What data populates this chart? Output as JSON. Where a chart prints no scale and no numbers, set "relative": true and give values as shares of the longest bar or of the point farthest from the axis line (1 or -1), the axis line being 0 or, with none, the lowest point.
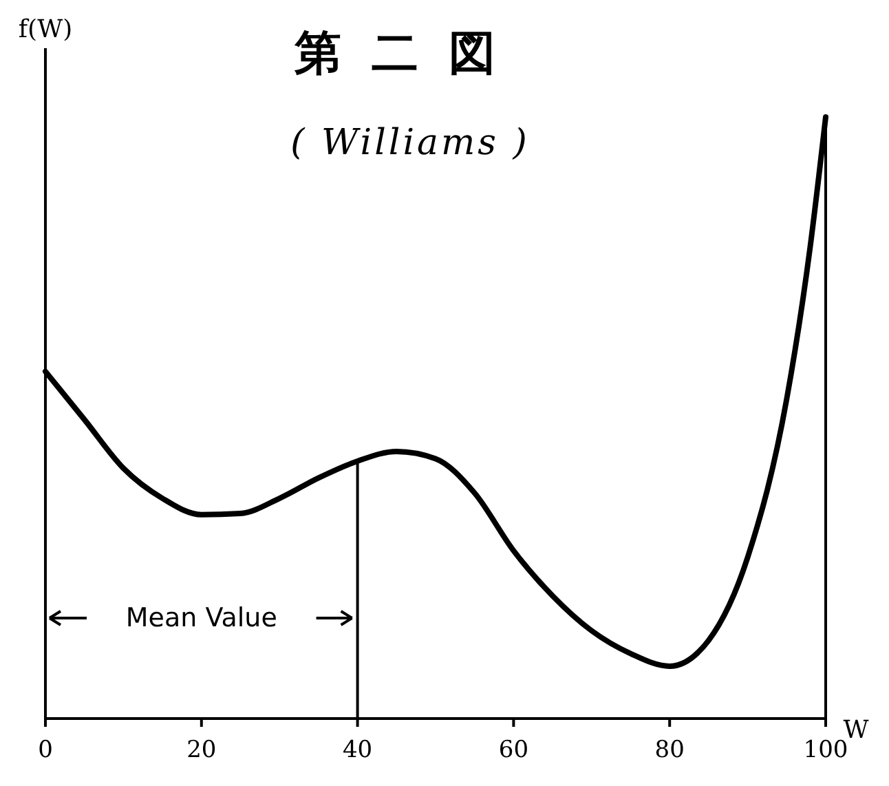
{
  "chart_data": {
    "type": "line",
    "title": "第二図",
    "subtitle": "( Williams )",
    "xlabel": "W",
    "ylabel": "f(W)",
    "relative": true,
    "color": "#000000",
    "marker": "none",
    "line_style": "solid",
    "grid": false,
    "legend": false,
    "x": [
      0,
      5,
      10,
      15,
      20,
      25,
      30,
      35,
      40,
      45,
      50,
      55,
      60,
      65,
      70,
      75,
      80,
      85,
      90,
      95,
      98,
      100
    ],
    "values": [
      0.577,
      0.497,
      0.416,
      0.366,
      0.339,
      0.341,
      0.366,
      0.4,
      0.428,
      0.444,
      0.432,
      0.375,
      0.279,
      0.204,
      0.146,
      0.108,
      0.087,
      0.13,
      0.268,
      0.531,
      0.783,
      1
    ],
    "xlim": [
      0,
      100
    ],
    "xticks": [
      0,
      20,
      40,
      60,
      80,
      100
    ],
    "ref_lines": [
      {
        "axis": "x",
        "value": 40,
        "label": "Mean Value"
      }
    ]
  }
}
